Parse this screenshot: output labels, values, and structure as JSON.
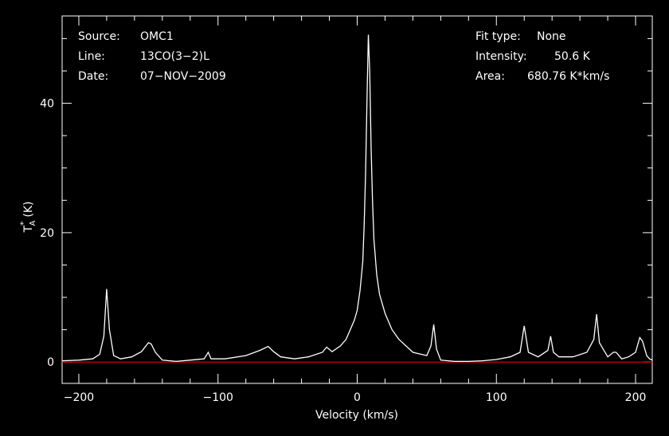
{
  "chart_data": {
    "type": "line",
    "xlabel": "Velocity (km/s)",
    "ylabel": "T",
    "ylabel_super": "*",
    "ylabel_sub": "A",
    "ylabel_unit": "(K)",
    "xlim": [
      -212,
      212
    ],
    "ylim": [
      -3.3,
      53.5
    ],
    "x_ticks": [
      -200,
      -100,
      0,
      100,
      200
    ],
    "y_ticks": [
      0,
      20,
      40
    ],
    "grid": false,
    "colors": {
      "background": "#000000",
      "axes": "#ffffff",
      "spectrum": "#ffffff",
      "baseline": "#cc0000"
    },
    "info_left": [
      {
        "key": "Source:",
        "value": "OMC1"
      },
      {
        "key": "Line:",
        "value": "13CO(3−2)L"
      },
      {
        "key": "Date:",
        "value": "07−NOV−2009"
      }
    ],
    "info_right": [
      {
        "key": "Fit type:",
        "value": "None"
      },
      {
        "key": "Intensity:",
        "value": "50.6 K"
      },
      {
        "key": "Area:",
        "value": "680.76 K*km/s"
      }
    ],
    "baseline_y": 0,
    "series": [
      {
        "x": [
          -212,
          -200,
          -190,
          -185,
          -182,
          -180,
          -178,
          -175,
          -170,
          -162,
          -155,
          -150,
          -148,
          -145,
          -140,
          -130,
          -120,
          -110,
          -107,
          -105,
          -95,
          -80,
          -70,
          -64,
          -60,
          -55,
          -45,
          -35,
          -25,
          -22,
          -18,
          -12,
          -8,
          -5,
          -2,
          0,
          2,
          4,
          5,
          6,
          7,
          8,
          9,
          10,
          11,
          12,
          14,
          16,
          20,
          25,
          30,
          35,
          40,
          50,
          53,
          55,
          57,
          60,
          70,
          80,
          90,
          100,
          110,
          117,
          120,
          123,
          130,
          137,
          139,
          141,
          145,
          155,
          165,
          170,
          172,
          174,
          180,
          184,
          186,
          190,
          195,
          200,
          203,
          205,
          208,
          210,
          212
        ],
        "y": [
          0.2,
          0.3,
          0.5,
          1.2,
          4.0,
          11.3,
          5.0,
          1.0,
          0.5,
          0.8,
          1.6,
          3.0,
          2.8,
          1.5,
          0.3,
          0.1,
          0.3,
          0.5,
          1.5,
          0.5,
          0.5,
          1.0,
          1.8,
          2.4,
          1.6,
          0.8,
          0.5,
          0.8,
          1.5,
          2.3,
          1.6,
          2.5,
          3.5,
          5.0,
          6.5,
          8.0,
          11.0,
          15.5,
          21.0,
          29.0,
          40.0,
          50.6,
          45.0,
          33.0,
          25.0,
          19.0,
          13.5,
          10.5,
          7.5,
          5.0,
          3.5,
          2.5,
          1.5,
          1.0,
          2.5,
          5.8,
          2.0,
          0.3,
          0.1,
          0.1,
          0.2,
          0.4,
          0.8,
          1.5,
          5.6,
          1.5,
          0.8,
          1.8,
          4.0,
          1.5,
          0.8,
          0.8,
          1.5,
          3.5,
          7.4,
          3.0,
          0.8,
          1.5,
          1.5,
          0.5,
          0.8,
          1.5,
          3.8,
          3.2,
          1.0,
          0.5,
          0.3
        ]
      }
    ]
  }
}
